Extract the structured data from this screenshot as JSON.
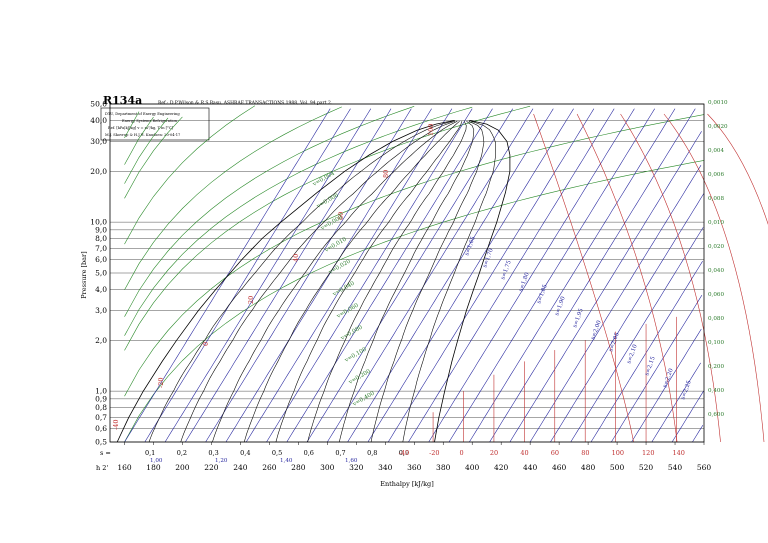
{
  "chart_data": {
    "type": "line",
    "title": "R134a",
    "source": "Ref.: D.P.Wilson & R.S.Basu, ASHRAE TRANSACTIONS 1988, Vol. 94 part 2.",
    "info_lines": [
      "DTU, Department of Energy Engineering",
      "Energy Systems Refrigeration",
      "Ref. [kPa|kJ|kg] v = m³/kg, T in [°C]",
      "M.J. Skovrup & H.J.H. Knudsen: 20-04-17"
    ],
    "xlabel": "Enthalpy [kJ/kg]",
    "ylabel": "Pressure [bar]",
    "x_ticks": [
      "160",
      "180",
      "200",
      "220",
      "240",
      "260",
      "280",
      "300",
      "320",
      "340",
      "360",
      "380",
      "400",
      "420",
      "440",
      "460",
      "480",
      "500",
      "520",
      "540",
      "560"
    ],
    "y_ticks": [
      "0,5",
      "0,6",
      "0,7",
      "0,8",
      "0,9",
      "1,0",
      "2,0",
      "3,0",
      "4,0",
      "5,0",
      "6,0",
      "7,0",
      "8,0",
      "9,0",
      "10,0",
      "20,0",
      "30,0",
      "40,0",
      "50,0"
    ],
    "xlim": [
      150,
      560
    ],
    "ylim_log": [
      0.5,
      50
    ],
    "x_corner_label": "h 2'",
    "s_label": "s =",
    "quality_labels": [
      "0,1",
      "0,2",
      "0,3",
      "0,4",
      "0,5",
      "0,6",
      "0,7",
      "0,8",
      "0,9"
    ],
    "entropy_bottom_labels": [
      "1,00",
      "1,20",
      "1,40",
      "1,60"
    ],
    "isotherm_labels_inside": [
      "-40",
      "-20",
      "0",
      "20",
      "40",
      "60",
      "80",
      "100"
    ],
    "isotherm_labels_bottom": [
      "-40",
      "-20",
      "0",
      "20",
      "40",
      "60",
      "80",
      "100",
      "120",
      "140"
    ],
    "isochore_left_labels": [
      "v=0,004",
      "v=0,006",
      "v=0,008",
      "v=0,010",
      "v=0,020",
      "v=0,040",
      "v=0,060",
      "v=0,080",
      "v=0,100",
      "v=0,200",
      "v=0,400"
    ],
    "isochore_right_labels": [
      "0,0010",
      "0,0020",
      "0,004",
      "0,006",
      "0,008",
      "0,010",
      "0,020",
      "0,040",
      "0,060",
      "0,080",
      "0,100",
      "0,200",
      "0,400",
      "0,600"
    ],
    "isentrope_labels": [
      "s=1,65",
      "s=1,70",
      "s=1,75",
      "s=1,80",
      "s=1,85",
      "s=1,90",
      "s=1,95",
      "s=2,00",
      "s=2,05",
      "s=2,10",
      "s=2,15",
      "s=2,20",
      "s=2,25"
    ],
    "colors": {
      "saturation": "#000000",
      "quality": "#0a0a0a",
      "isotherm": "#c03030",
      "isentrope": "#2a2aa0",
      "isochore": "#2a8a2a",
      "frame": "#000000"
    }
  }
}
